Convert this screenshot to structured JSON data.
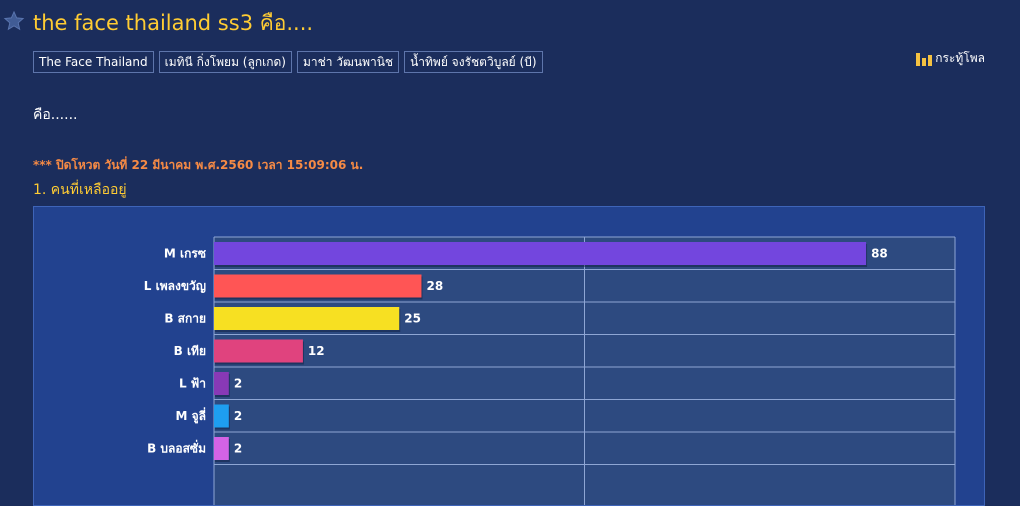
{
  "topic": {
    "title": "the face thailand ss3 คือ....",
    "tags": [
      "The Face Thailand",
      "เมทินี กิ่งโพยม (ลูกเกด)",
      "มาช่า วัฒนพานิช",
      "น้ำทิพย์ จงรัชตวิบูลย์ (บี)"
    ],
    "poll_link_label": "กระทู้โพล",
    "body": "คือ......",
    "poll_close_note": "*** ปิดโหวต วันที่ 22 มีนาคม พ.ศ.2560 เวลา 15:09:06 น.",
    "question": "1. คนที่เหลืออยู่"
  },
  "colors": {
    "background": "#1b2d5c",
    "title": "#ffcc33",
    "close_note": "#f58a45",
    "chart_bg": "#22428f",
    "plot_bg": "#2d4a80"
  },
  "chart_data": {
    "type": "bar",
    "orientation": "horizontal",
    "categories": [
      "M เกรซ",
      "L เพลงขวัญ",
      "B สกาย",
      "B เทีย",
      "L ฟ้า",
      "M จูลี่",
      "B บลอสซั่ม"
    ],
    "values": [
      88,
      28,
      25,
      12,
      2,
      2,
      2
    ],
    "colors": [
      "#7346de",
      "#ff5555",
      "#f7e022",
      "#e0437e",
      "#8839b6",
      "#1e9ef0",
      "#d363e6"
    ],
    "xlim": [
      0,
      100
    ],
    "grid": true
  }
}
